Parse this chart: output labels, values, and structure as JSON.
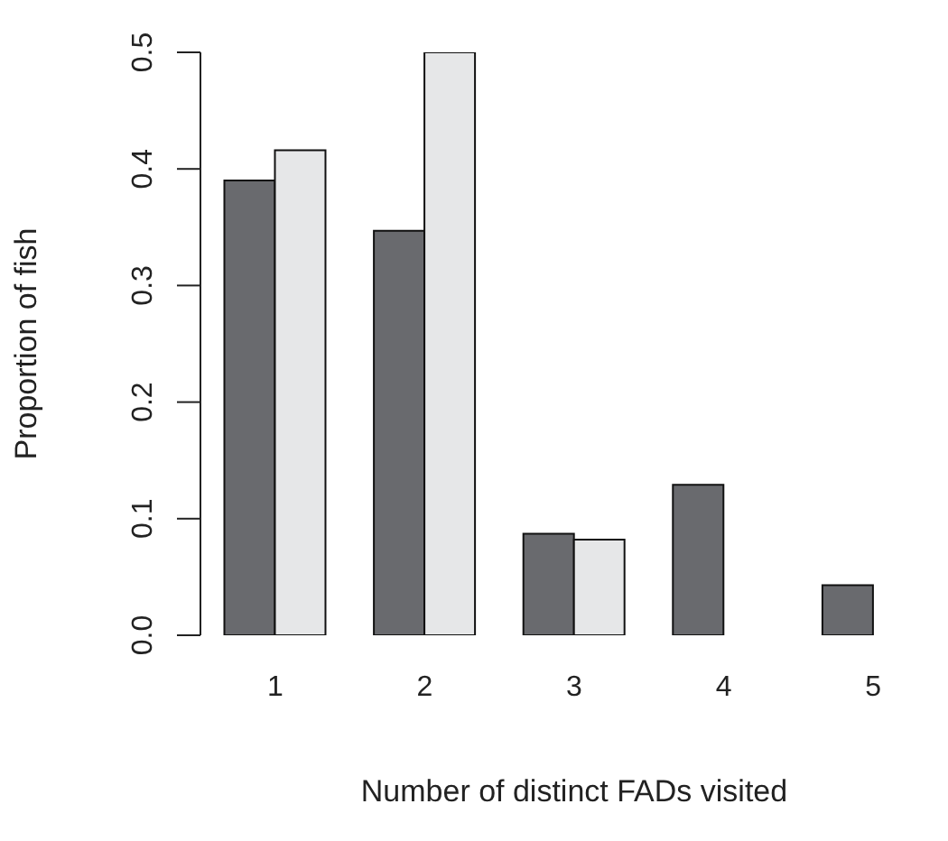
{
  "chart_data": {
    "type": "bar",
    "xlabel": "Number of distinct FADs visited",
    "ylabel": "Proportion of fish",
    "categories": [
      "1",
      "2",
      "3",
      "4",
      "5"
    ],
    "series": [
      {
        "color": "#696a6e",
        "values": [
          0.39,
          0.347,
          0.087,
          0.129,
          0.043
        ]
      },
      {
        "color": "#e6e7e8",
        "values": [
          0.416,
          0.5,
          0.082,
          0,
          0
        ]
      }
    ],
    "ylim": [
      0,
      0.5
    ],
    "yticks": [
      {
        "value": 0,
        "label": "0.0"
      },
      0.1,
      0.2,
      0.3,
      0.4,
      0.5
    ],
    "grid": false,
    "legend": false
  }
}
